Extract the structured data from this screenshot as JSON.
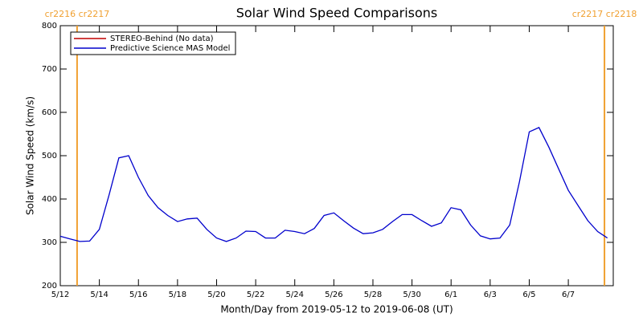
{
  "chart_data": {
    "type": "line",
    "title": "Solar Wind Speed Comparisons",
    "ylabel": "Solar Wind Speed (km/s)",
    "xlabel": "Month/Day from 2019-05-12 to 2019-06-08 (UT)",
    "xlim": [
      0,
      28.3
    ],
    "ylim": [
      200,
      800
    ],
    "yticks": [
      200,
      300,
      400,
      500,
      600,
      700,
      800
    ],
    "xticks": [
      {
        "value": 0,
        "label": "5/12"
      },
      {
        "value": 2,
        "label": "5/14"
      },
      {
        "value": 4,
        "label": "5/16"
      },
      {
        "value": 6,
        "label": "5/18"
      },
      {
        "value": 8,
        "label": "5/20"
      },
      {
        "value": 10,
        "label": "5/22"
      },
      {
        "value": 12,
        "label": "5/24"
      },
      {
        "value": 14,
        "label": "5/26"
      },
      {
        "value": 16,
        "label": "5/28"
      },
      {
        "value": 18,
        "label": "5/30"
      },
      {
        "value": 20,
        "label": "6/1"
      },
      {
        "value": 22,
        "label": "6/3"
      },
      {
        "value": 24,
        "label": "6/5"
      },
      {
        "value": 26,
        "label": "6/7"
      }
    ],
    "x": [
      0,
      0.5,
      1,
      1.5,
      2,
      2.5,
      3,
      3.5,
      4,
      4.5,
      5,
      5.5,
      6,
      6.5,
      7,
      7.5,
      8,
      8.5,
      9,
      9.5,
      10,
      10.5,
      11,
      11.5,
      12,
      12.5,
      13,
      13.5,
      14,
      14.5,
      15,
      15.5,
      16,
      16.5,
      17,
      17.5,
      18,
      18.5,
      19,
      19.5,
      20,
      20.5,
      21,
      21.5,
      22,
      22.5,
      23,
      23.5,
      24,
      24.5,
      25,
      25.5,
      26,
      26.5,
      27,
      27.5,
      28
    ],
    "series": [
      {
        "name": "STEREO-Behind (No data)",
        "color": "#c00000",
        "values": [
          null,
          null,
          null,
          null,
          null,
          null,
          null,
          null,
          null,
          null,
          null,
          null,
          null,
          null,
          null,
          null,
          null,
          null,
          null,
          null,
          null,
          null,
          null,
          null,
          null,
          null,
          null,
          null,
          null,
          null,
          null,
          null,
          null,
          null,
          null,
          null,
          null,
          null,
          null,
          null,
          null,
          null,
          null,
          null,
          null,
          null,
          null,
          null,
          null,
          null,
          null,
          null,
          null,
          null,
          null,
          null,
          null
        ]
      },
      {
        "name": "Predictive Science MAS Model",
        "color": "#0000cc",
        "values": [
          314,
          308,
          302,
          303,
          330,
          410,
          495,
          500,
          450,
          408,
          380,
          362,
          348,
          354,
          356,
          330,
          310,
          302,
          310,
          326,
          325,
          310,
          310,
          328,
          325,
          320,
          332,
          362,
          368,
          350,
          333,
          320,
          322,
          330,
          348,
          364,
          364,
          350,
          337,
          345,
          380,
          375,
          340,
          315,
          308,
          310,
          340,
          440,
          555,
          565,
          520,
          470,
          420,
          385,
          350,
          325,
          310
        ]
      }
    ],
    "annotations": [
      {
        "x": 0.86,
        "label": "cr2216 cr2217"
      },
      {
        "x": 27.85,
        "label": "cr2217 cr2218"
      }
    ],
    "annotation_color": "#f0a030",
    "legend": "upper left"
  }
}
